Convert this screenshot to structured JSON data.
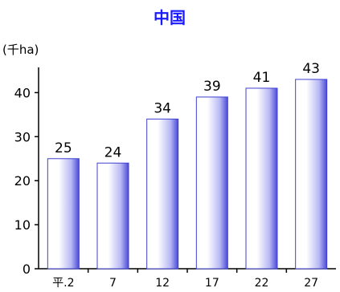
{
  "colors": {
    "title": "#1a1aff",
    "bar_edge": "#4040d0",
    "bar_light": "#ffffff",
    "bar_mid": "#b8b8f5",
    "bar_dark": "#4a4ad8",
    "axis": "#000000"
  },
  "chart_data": {
    "type": "bar",
    "title": "中国",
    "unit_label": "(千ha)",
    "categories": [
      "平.2",
      "7",
      "12",
      "17",
      "22",
      "27"
    ],
    "values": [
      25,
      24,
      34,
      39,
      41,
      43
    ],
    "data_labels": [
      "25",
      "24",
      "34",
      "39",
      "41",
      "43"
    ],
    "ylim": [
      0,
      45
    ],
    "yticks": [
      0,
      10,
      20,
      30,
      40
    ],
    "grid": false,
    "legend": "none"
  }
}
